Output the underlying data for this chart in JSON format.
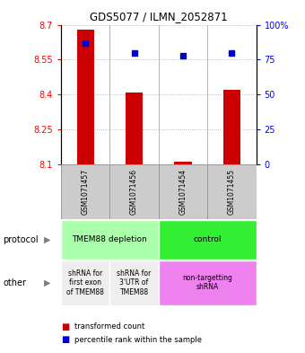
{
  "title": "GDS5077 / ILMN_2052871",
  "samples": [
    "GSM1071457",
    "GSM1071456",
    "GSM1071454",
    "GSM1071455"
  ],
  "red_values": [
    8.68,
    8.41,
    8.11,
    8.42
  ],
  "blue_values": [
    87,
    80,
    78,
    80
  ],
  "ylim_left": [
    8.1,
    8.7
  ],
  "ylim_right": [
    0,
    100
  ],
  "yticks_left": [
    8.1,
    8.25,
    8.4,
    8.55,
    8.7
  ],
  "yticks_right": [
    0,
    25,
    50,
    75,
    100
  ],
  "ytick_labels_right": [
    "0",
    "25",
    "50",
    "75",
    "100%"
  ],
  "protocol_label": "protocol",
  "other_label": "other",
  "protocol_groups": [
    {
      "label": "TMEM88 depletion",
      "color": "#aaffaa",
      "span": [
        0,
        2
      ]
    },
    {
      "label": "control",
      "color": "#33ee33",
      "span": [
        2,
        4
      ]
    }
  ],
  "other_groups": [
    {
      "label": "shRNA for\nfirst exon\nof TMEM88",
      "color": "#eeeeee",
      "span": [
        0,
        1
      ]
    },
    {
      "label": "shRNA for\n3'UTR of\nTMEM88",
      "color": "#eeeeee",
      "span": [
        1,
        2
      ]
    },
    {
      "label": "non-targetting\nshRNA",
      "color": "#ee82ee",
      "span": [
        2,
        4
      ]
    }
  ],
  "legend_red": "transformed count",
  "legend_blue": "percentile rank within the sample",
  "red_color": "#cc0000",
  "blue_color": "#0000cc",
  "bar_bottom": 8.1,
  "sample_box_color": "#cccccc",
  "sample_box_edge": "#999999"
}
